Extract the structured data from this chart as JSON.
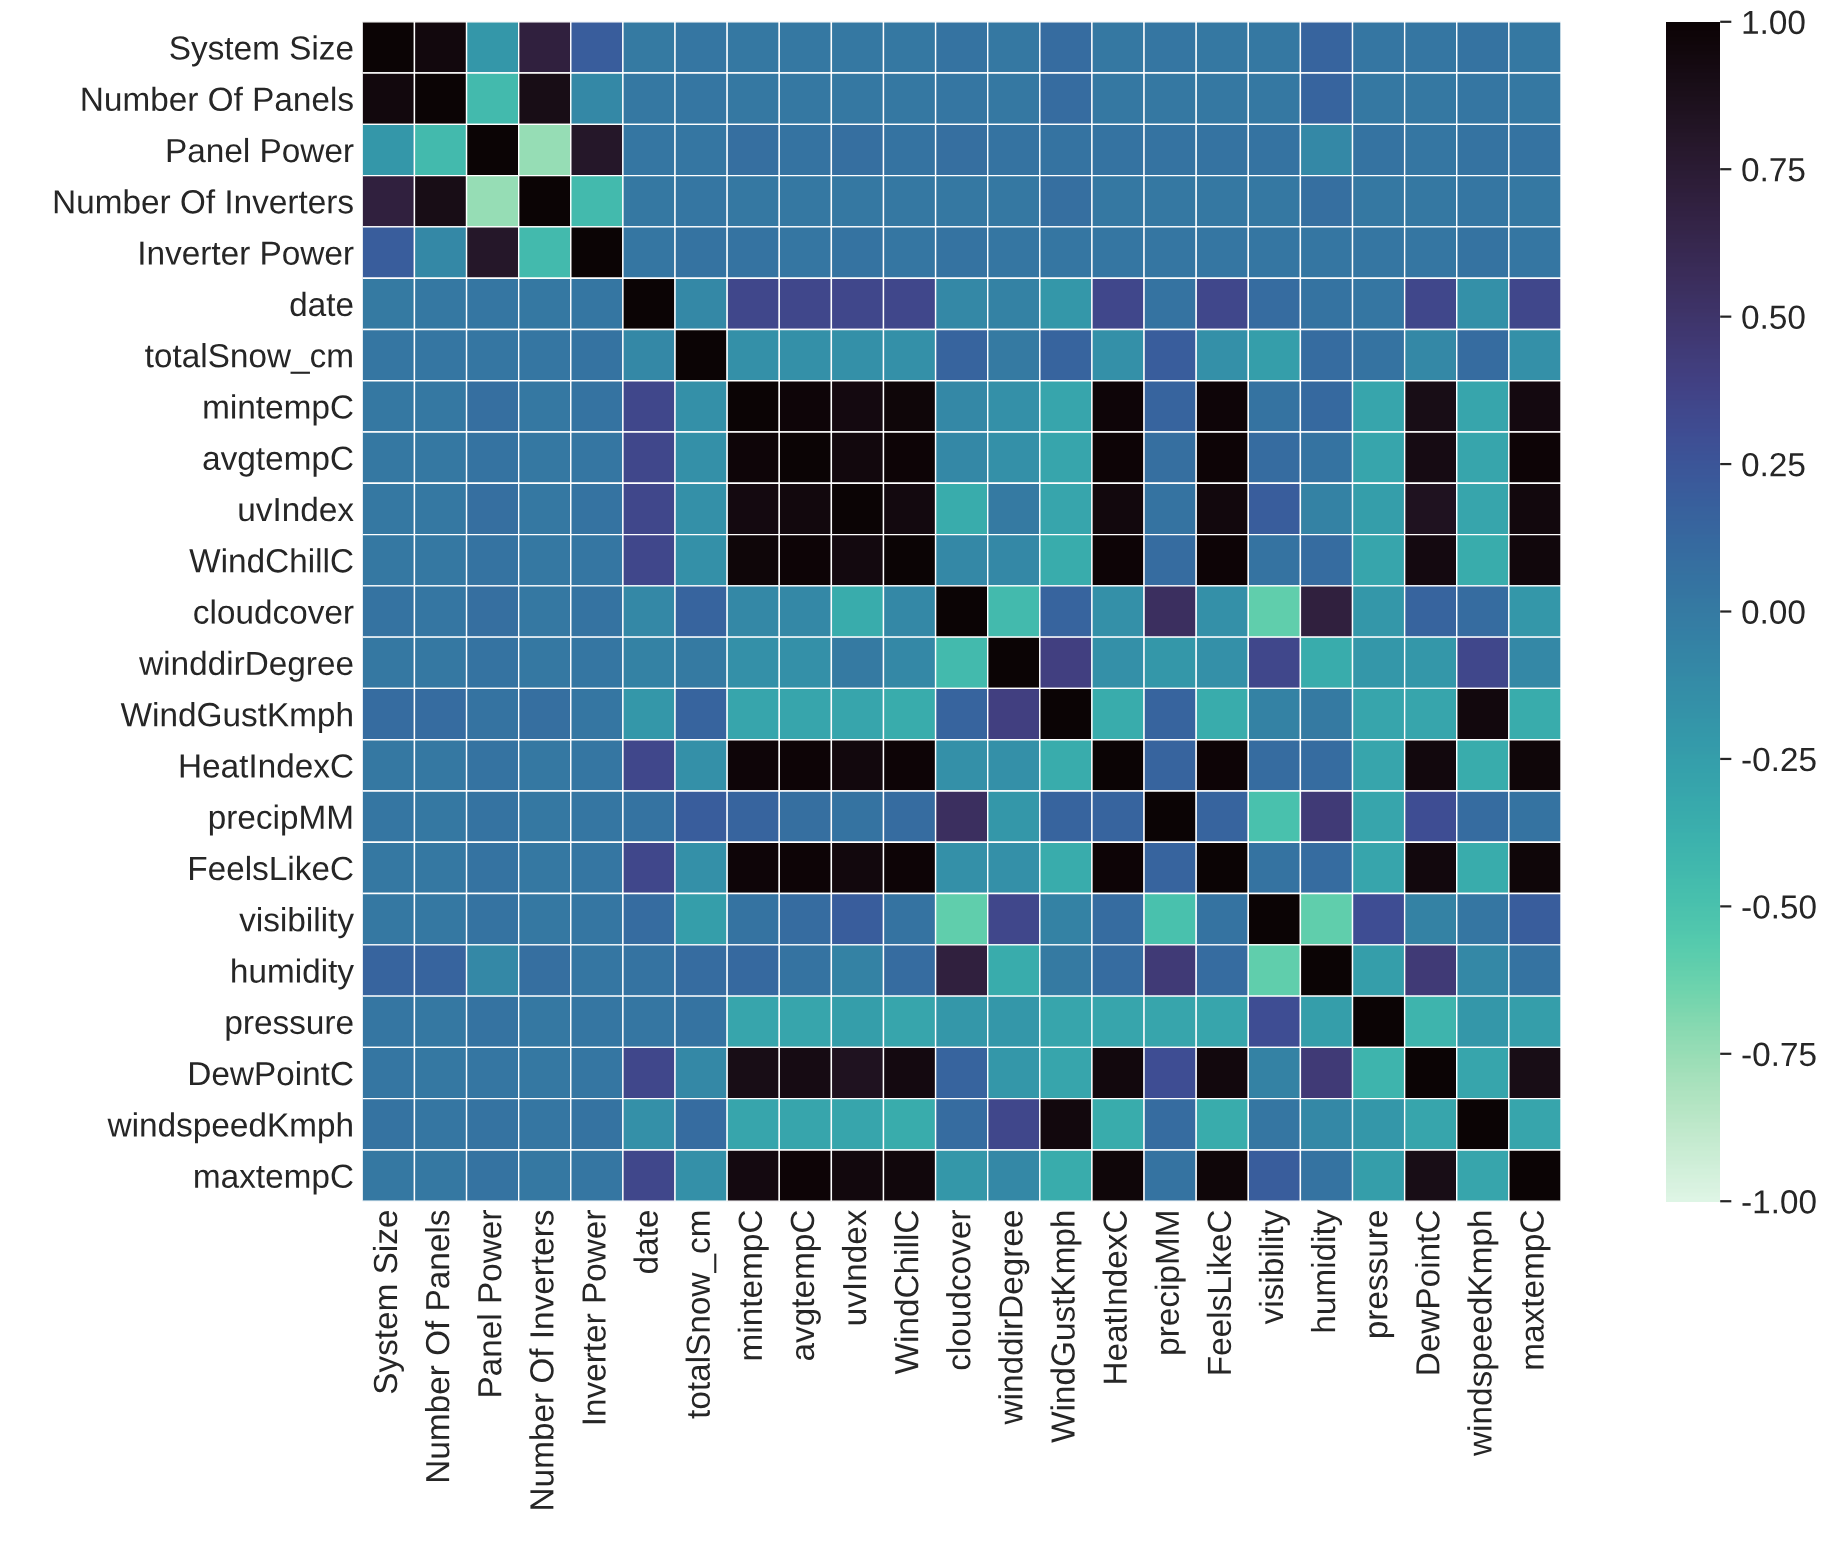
{
  "chart_data": {
    "type": "heatmap",
    "categories": [
      "System Size",
      "Number Of Panels",
      "Panel Power",
      "Number Of Inverters",
      "Inverter Power",
      "date",
      "totalSnow_cm",
      "mintempC",
      "avgtempC",
      "uvIndex",
      "WindChillC",
      "cloudcover",
      "winddirDegree",
      "WindGustKmph",
      "HeatIndexC",
      "precipMM",
      "FeelsLikeC",
      "visibility",
      "humidity",
      "pressure",
      "DewPointC",
      "windspeedKmph",
      "maxtempC"
    ],
    "y_categories": [
      "System Size",
      "Number Of Panels",
      "Panel Power",
      "Number Of Inverters",
      "Inverter Power",
      "date",
      "totalSnow_cm",
      "mintempC",
      "avgtempC",
      "uvIndex",
      "WindChillC",
      "cloudcover",
      "winddirDegree",
      "WindGustKmph",
      "HeatIndexC",
      "precipMM",
      "FeelsLikeC",
      "visibility",
      "humidity",
      "pressure",
      "DewPointC",
      "windspeedKmph",
      "maxtempC"
    ],
    "cells": [
      [
        1,
        0.95,
        -0.2,
        0.7,
        0.2,
        0,
        0.03,
        0.02,
        0.02,
        0.02,
        0.02,
        0.05,
        0.02,
        0.1,
        0.02,
        0.03,
        0.02,
        0.02,
        0.15,
        0.03,
        0.03,
        0.05,
        0.02
      ],
      [
        0.95,
        1,
        -0.45,
        0.9,
        -0.1,
        0.02,
        0.03,
        0.02,
        0.02,
        0.02,
        0.02,
        0.03,
        0.02,
        0.1,
        0.02,
        0.02,
        0.02,
        0.02,
        0.15,
        0.02,
        0.02,
        0.03,
        0.02
      ],
      [
        -0.2,
        -0.45,
        1,
        -0.75,
        0.8,
        0.03,
        0.03,
        0.08,
        0.05,
        0.08,
        0.05,
        0.08,
        0.05,
        0.05,
        0.05,
        0.05,
        0.05,
        0.05,
        -0.1,
        0.05,
        0.03,
        0.05,
        0.05
      ],
      [
        0.7,
        0.9,
        -0.75,
        1,
        -0.45,
        0.02,
        0.03,
        0.02,
        0.02,
        0.02,
        0.02,
        0.02,
        0.02,
        0.08,
        0.02,
        0.02,
        0.02,
        0.02,
        0.08,
        0.02,
        0.02,
        0.03,
        0.02
      ],
      [
        0.2,
        -0.1,
        0.8,
        -0.45,
        1,
        0.03,
        0.05,
        0.05,
        0.03,
        0.05,
        0.03,
        0.05,
        0.03,
        0.03,
        0.03,
        0.03,
        0.03,
        0.03,
        0.03,
        0.03,
        0.03,
        0.05,
        0.03
      ],
      [
        0,
        0.02,
        0.03,
        0.02,
        0.03,
        1,
        -0.1,
        0.35,
        0.35,
        0.35,
        0.35,
        -0.1,
        -0.05,
        -0.2,
        0.35,
        0.05,
        0.35,
        0.1,
        0.05,
        0.03,
        0.35,
        -0.15,
        0.35
      ],
      [
        0.03,
        0.03,
        0.03,
        0.03,
        0.05,
        -0.1,
        1,
        -0.15,
        -0.15,
        -0.15,
        -0.15,
        0.15,
        0,
        0.15,
        -0.15,
        0.2,
        -0.15,
        -0.25,
        0.1,
        0.05,
        -0.1,
        0.1,
        -0.15
      ],
      [
        0.02,
        0.02,
        0.08,
        0.02,
        0.05,
        0.35,
        -0.15,
        1,
        0.98,
        0.93,
        0.97,
        -0.1,
        -0.15,
        -0.3,
        0.98,
        0.15,
        0.98,
        0.05,
        0.12,
        -0.3,
        0.9,
        -0.3,
        0.93
      ],
      [
        0.02,
        0.02,
        0.05,
        0.02,
        0.03,
        0.35,
        -0.15,
        0.98,
        1,
        0.95,
        0.99,
        -0.1,
        -0.15,
        -0.3,
        0.99,
        0.08,
        0.99,
        0.1,
        0.05,
        -0.3,
        0.92,
        -0.3,
        0.99
      ],
      [
        0.02,
        0.02,
        0.08,
        0.02,
        0.05,
        0.35,
        -0.15,
        0.93,
        0.95,
        1,
        0.94,
        -0.35,
        0,
        -0.3,
        0.95,
        0.05,
        0.95,
        0.2,
        -0.05,
        -0.25,
        0.85,
        -0.3,
        0.95
      ],
      [
        0.02,
        0.02,
        0.05,
        0.02,
        0.03,
        0.35,
        -0.15,
        0.97,
        0.99,
        0.94,
        1,
        -0.1,
        -0.1,
        -0.35,
        0.99,
        0.1,
        0.99,
        0.05,
        0.1,
        -0.3,
        0.93,
        -0.35,
        0.96
      ],
      [
        0.05,
        0.03,
        0.08,
        0.02,
        0.05,
        -0.1,
        0.15,
        -0.1,
        -0.1,
        -0.35,
        -0.1,
        1,
        -0.45,
        0.15,
        -0.15,
        0.55,
        -0.15,
        -0.6,
        0.7,
        -0.2,
        0.15,
        0.1,
        -0.2
      ],
      [
        0.02,
        0.02,
        0.05,
        0.02,
        0.03,
        -0.05,
        0,
        -0.15,
        -0.15,
        0,
        -0.1,
        -0.45,
        1,
        0.4,
        -0.15,
        -0.2,
        -0.15,
        0.35,
        -0.35,
        -0.2,
        -0.2,
        0.35,
        -0.1
      ],
      [
        0.1,
        0.1,
        0.05,
        0.08,
        0.03,
        -0.2,
        0.15,
        -0.3,
        -0.3,
        -0.3,
        -0.35,
        0.15,
        0.4,
        1,
        -0.35,
        0.15,
        -0.35,
        -0.05,
        0,
        -0.3,
        -0.3,
        0.95,
        -0.35
      ],
      [
        0.02,
        0.02,
        0.05,
        0.02,
        0.03,
        0.35,
        -0.15,
        0.98,
        0.99,
        0.95,
        0.99,
        -0.15,
        -0.15,
        -0.35,
        1,
        0.15,
        0.99,
        0.1,
        0.1,
        -0.3,
        0.95,
        -0.35,
        0.97
      ],
      [
        0.03,
        0.02,
        0.05,
        0.02,
        0.03,
        0.05,
        0.2,
        0.15,
        0.08,
        0.05,
        0.1,
        0.55,
        -0.2,
        0.15,
        0.15,
        1,
        0.15,
        -0.5,
        0.45,
        -0.3,
        0.3,
        0.1,
        0.05
      ],
      [
        0.02,
        0.02,
        0.05,
        0.02,
        0.03,
        0.35,
        -0.15,
        0.98,
        0.99,
        0.95,
        0.99,
        -0.15,
        -0.15,
        -0.35,
        0.99,
        0.15,
        1,
        0.05,
        0.1,
        -0.3,
        0.95,
        -0.35,
        0.97
      ],
      [
        0.02,
        0.02,
        0.05,
        0.02,
        0.03,
        0.1,
        -0.25,
        0.05,
        0.1,
        0.2,
        0.05,
        -0.6,
        0.35,
        -0.05,
        0.1,
        -0.5,
        0.05,
        1,
        -0.6,
        0.3,
        -0.05,
        0.03,
        0.2
      ],
      [
        0.15,
        0.15,
        -0.1,
        0.08,
        0.03,
        0.05,
        0.1,
        0.12,
        0.05,
        -0.05,
        0.1,
        0.7,
        -0.35,
        0,
        0.1,
        0.45,
        0.1,
        -0.6,
        1,
        -0.25,
        0.45,
        -0.1,
        0.05
      ],
      [
        0.03,
        0.02,
        0.05,
        0.02,
        0.03,
        0.03,
        0.05,
        -0.3,
        -0.3,
        -0.25,
        -0.3,
        -0.2,
        -0.2,
        -0.3,
        -0.3,
        -0.3,
        -0.3,
        0.3,
        -0.25,
        1,
        -0.4,
        -0.2,
        -0.25
      ],
      [
        0.03,
        0.02,
        0.03,
        0.02,
        0.03,
        0.35,
        -0.1,
        0.9,
        0.92,
        0.85,
        0.93,
        0.15,
        -0.2,
        -0.3,
        0.95,
        0.3,
        0.95,
        -0.05,
        0.45,
        -0.4,
        1,
        -0.3,
        0.9
      ],
      [
        0.05,
        0.03,
        0.05,
        0.03,
        0.05,
        -0.15,
        0.1,
        -0.3,
        -0.3,
        -0.3,
        -0.35,
        0.1,
        0.35,
        0.95,
        -0.35,
        0.1,
        -0.35,
        0.03,
        -0.1,
        -0.2,
        -0.3,
        1,
        -0.3
      ],
      [
        0.02,
        0.02,
        0.05,
        0.02,
        0.03,
        0.35,
        -0.15,
        0.93,
        0.99,
        0.95,
        0.96,
        -0.2,
        -0.1,
        -0.35,
        0.97,
        0.05,
        0.97,
        0.2,
        0.05,
        -0.25,
        0.9,
        -0.3,
        1
      ]
    ],
    "clim": [
      -1,
      1
    ],
    "cticks": [
      {
        "value": -1,
        "label": "-1.00"
      },
      {
        "value": -0.75,
        "label": "-0.75"
      },
      {
        "value": -0.5,
        "label": "-0.50"
      },
      {
        "value": -0.25,
        "label": "-0.25"
      },
      {
        "value": 0,
        "label": "0.00"
      },
      {
        "value": 0.25,
        "label": "0.25"
      },
      {
        "value": 0.5,
        "label": "0.50"
      },
      {
        "value": 0.75,
        "label": "0.75"
      },
      {
        "value": 1,
        "label": "1.00"
      }
    ]
  }
}
